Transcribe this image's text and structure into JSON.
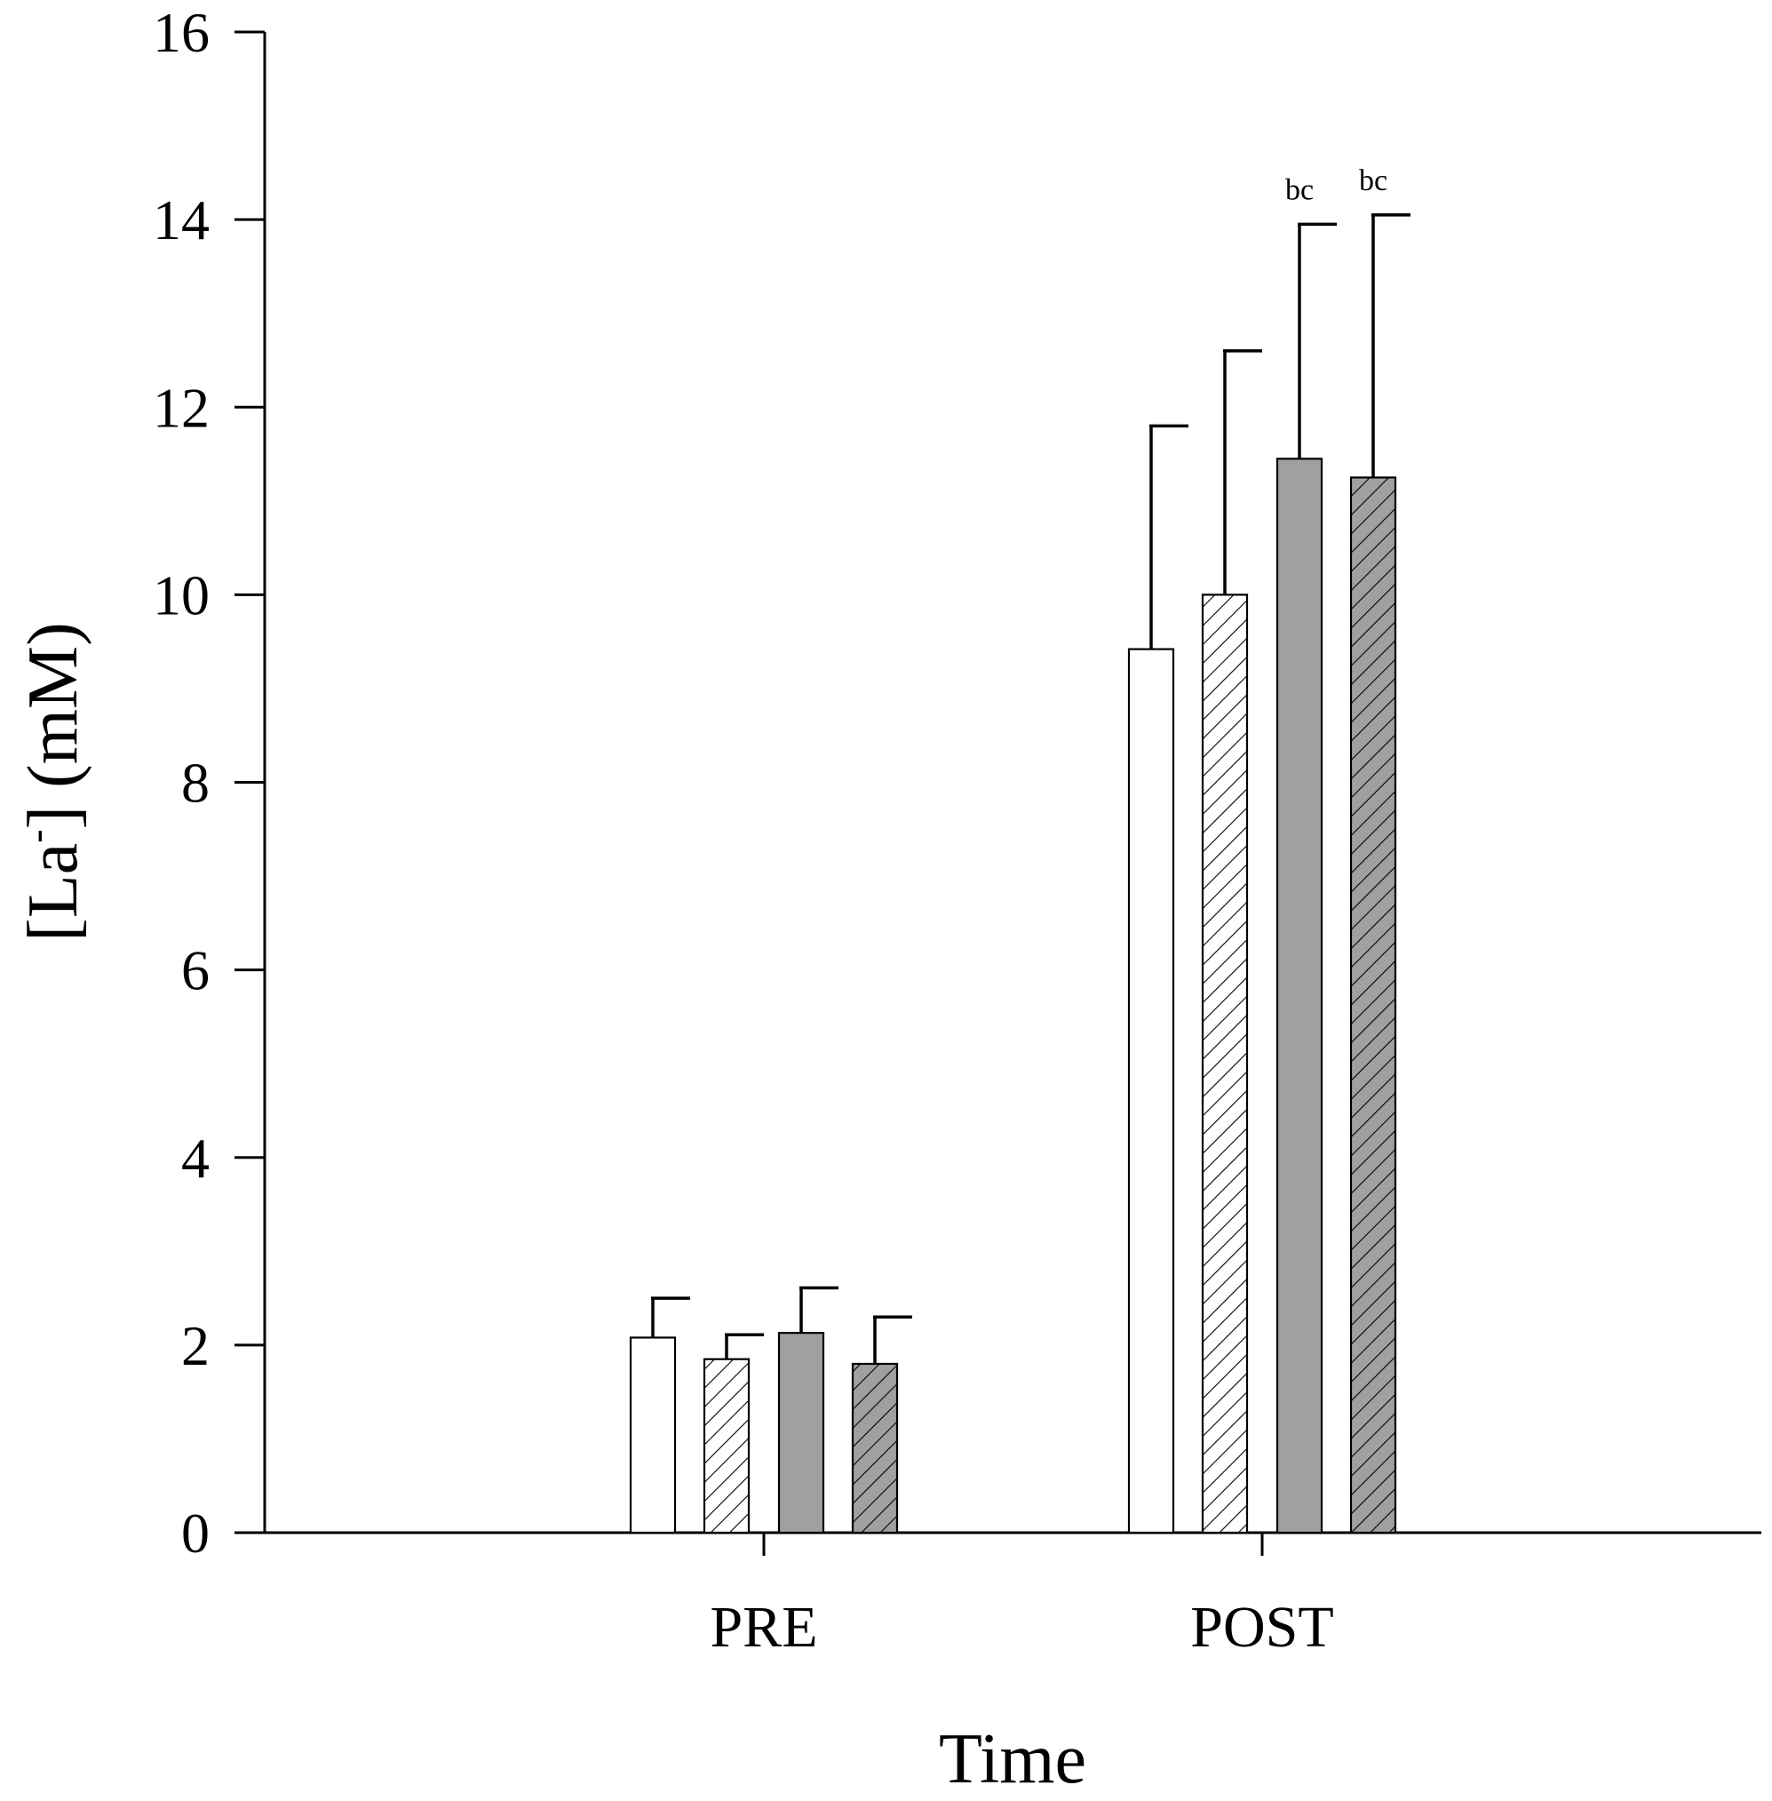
{
  "chart_data": {
    "type": "bar",
    "title": "",
    "xlabel": "Time",
    "ylabel": "[La⁻] (mM)",
    "ylabel_parts": {
      "main": "[La",
      "sup": "-",
      "rest": "] (mM)"
    },
    "ylim": [
      0,
      16
    ],
    "yticks": [
      0,
      2,
      4,
      6,
      8,
      10,
      12,
      14,
      16
    ],
    "grid": false,
    "legend": "none",
    "categories": [
      "PRE",
      "POST"
    ],
    "series": [
      {
        "fill": "#ffffff",
        "hatch": false,
        "values": [
          2.08,
          9.42
        ],
        "errors": [
          0.42,
          2.38
        ],
        "annotations": [
          "",
          ""
        ]
      },
      {
        "fill": "#ffffff",
        "hatch": true,
        "values": [
          1.85,
          10.0
        ],
        "errors": [
          0.26,
          2.6
        ],
        "annotations": [
          "",
          ""
        ]
      },
      {
        "fill": "#a0a0a0",
        "hatch": false,
        "values": [
          2.13,
          11.45
        ],
        "errors": [
          0.48,
          2.5
        ],
        "annotations": [
          "",
          "bc"
        ]
      },
      {
        "fill": "#a0a0a0",
        "hatch": true,
        "values": [
          1.8,
          11.25
        ],
        "errors": [
          0.5,
          2.8
        ],
        "annotations": [
          "",
          "bc"
        ]
      }
    ]
  }
}
